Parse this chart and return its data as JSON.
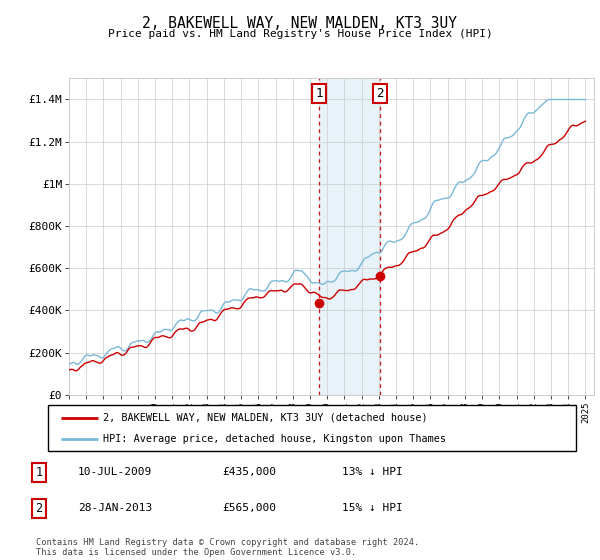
{
  "title": "2, BAKEWELL WAY, NEW MALDEN, KT3 3UY",
  "subtitle": "Price paid vs. HM Land Registry's House Price Index (HPI)",
  "ylim": [
    0,
    1500000
  ],
  "yticks": [
    0,
    200000,
    400000,
    600000,
    800000,
    1000000,
    1200000,
    1400000
  ],
  "ytick_labels": [
    "£0",
    "£200K",
    "£400K",
    "£600K",
    "£800K",
    "£1M",
    "£1.2M",
    "£1.4M"
  ],
  "sale1_date": 2009.53,
  "sale1_price": 435000,
  "sale2_date": 2013.08,
  "sale2_price": 565000,
  "line_red_color": "#cc0000",
  "line_blue_color": "#7ab8d9",
  "legend_label1": "2, BAKEWELL WAY, NEW MALDEN, KT3 3UY (detached house)",
  "legend_label2": "HPI: Average price, detached house, Kingston upon Thames",
  "table_rows": [
    {
      "num": "1",
      "date": "10-JUL-2009",
      "price": "£435,000",
      "hpi": "13% ↓ HPI"
    },
    {
      "num": "2",
      "date": "28-JAN-2013",
      "price": "£565,000",
      "hpi": "15% ↓ HPI"
    }
  ],
  "footer": "Contains HM Land Registry data © Crown copyright and database right 2024.\nThis data is licensed under the Open Government Licence v3.0.",
  "background_color": "#ffffff",
  "grid_color": "#cccccc",
  "shade_color": "#daeaf5",
  "box_ec": "#cc0000"
}
